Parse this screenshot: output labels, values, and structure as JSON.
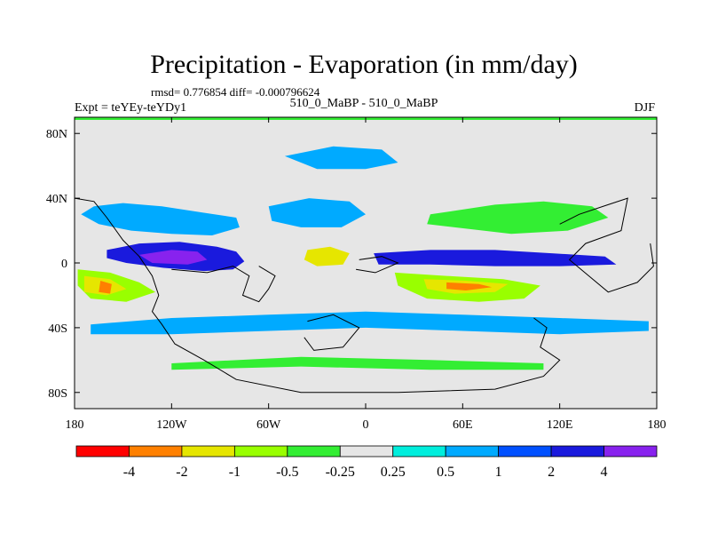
{
  "chart_data": {
    "type": "heatmap",
    "title": "Precipitation - Evaporation (in mm/day)",
    "stats": "rmsd= 0.776854 diff= -0.000796624",
    "left_label": "Expt = teYEy-teYDy1",
    "center_label": "510_0_MaBP - 510_0_MaBP",
    "right_label": "DJF",
    "x_ticks": [
      "180",
      "120W",
      "60W",
      "0",
      "60E",
      "120E",
      "180"
    ],
    "x_tick_values": [
      -180,
      -120,
      -60,
      0,
      60,
      120,
      180
    ],
    "y_ticks": [
      "80N",
      "40N",
      "0",
      "40S",
      "80S"
    ],
    "y_tick_values": [
      80,
      40,
      0,
      -40,
      -80
    ],
    "xlim": [
      -180,
      180
    ],
    "ylim": [
      -90,
      90
    ],
    "colorbar_labels": [
      "-4",
      "-2",
      "-1",
      "-0.5",
      "-0.25",
      "0.25",
      "0.5",
      "1",
      "2",
      "4"
    ],
    "colorbar_levels": [
      -4,
      -2,
      -1,
      -0.5,
      -0.25,
      0.25,
      0.5,
      1,
      2,
      4
    ],
    "colorbar_colors": [
      "#ff0000",
      "#ff8000",
      "#e6e600",
      "#99ff00",
      "#33ee33",
      "#e6e6e6",
      "#00eedd",
      "#00aaff",
      "#0050ff",
      "#1a1add",
      "#8822ee"
    ],
    "regions": [
      {
        "name": "n-pacific-ridge",
        "level": 0.5,
        "points": [
          [
            -168,
            35
          ],
          [
            -150,
            37
          ],
          [
            -126,
            35
          ],
          [
            -100,
            31
          ],
          [
            -80,
            28
          ],
          [
            -78,
            22
          ],
          [
            -95,
            17
          ],
          [
            -120,
            18
          ],
          [
            -145,
            20
          ],
          [
            -165,
            24
          ],
          [
            -176,
            30
          ]
        ]
      },
      {
        "name": "tropical-pacific-blue",
        "level": 2,
        "points": [
          [
            -160,
            8
          ],
          [
            -140,
            12
          ],
          [
            -115,
            13
          ],
          [
            -92,
            10
          ],
          [
            -80,
            7
          ],
          [
            -75,
            1
          ],
          [
            -82,
            -4
          ],
          [
            -100,
            -5
          ],
          [
            -125,
            -3
          ],
          [
            -148,
            0
          ],
          [
            -160,
            3
          ]
        ]
      },
      {
        "name": "tropical-pacific-core",
        "level": 4,
        "points": [
          [
            -140,
            5
          ],
          [
            -120,
            8
          ],
          [
            -104,
            7
          ],
          [
            -98,
            2
          ],
          [
            -110,
            -1
          ],
          [
            -132,
            0
          ]
        ]
      },
      {
        "name": "s-pacific-yellow",
        "level": -1,
        "points": [
          [
            -178,
            -4
          ],
          [
            -158,
            -6
          ],
          [
            -140,
            -12
          ],
          [
            -130,
            -18
          ],
          [
            -148,
            -24
          ],
          [
            -170,
            -22
          ],
          [
            -178,
            -14
          ]
        ]
      },
      {
        "name": "s-pacific-orange",
        "level": -2,
        "points": [
          [
            -174,
            -8
          ],
          [
            -158,
            -10
          ],
          [
            -148,
            -16
          ],
          [
            -160,
            -20
          ],
          [
            -174,
            -18
          ]
        ]
      },
      {
        "name": "s-pacific-red",
        "level": -4,
        "points": [
          [
            -164,
            -11
          ],
          [
            -157,
            -13
          ],
          [
            -158,
            -19
          ],
          [
            -165,
            -18
          ]
        ]
      },
      {
        "name": "atlantic-dry",
        "level": -2,
        "points": [
          [
            -36,
            8
          ],
          [
            -22,
            10
          ],
          [
            -10,
            6
          ],
          [
            -14,
            -1
          ],
          [
            -30,
            -2
          ],
          [
            -38,
            2
          ]
        ]
      },
      {
        "name": "equatorial-band-blue",
        "level": 2,
        "points": [
          [
            5,
            6
          ],
          [
            40,
            8
          ],
          [
            80,
            8
          ],
          [
            115,
            6
          ],
          [
            148,
            4
          ],
          [
            155,
            -1
          ],
          [
            120,
            -2
          ],
          [
            80,
            -2
          ],
          [
            40,
            -1
          ],
          [
            8,
            -1
          ]
        ]
      },
      {
        "name": "indian-ocean-dry",
        "level": -1,
        "points": [
          [
            18,
            -6
          ],
          [
            50,
            -8
          ],
          [
            85,
            -10
          ],
          [
            108,
            -14
          ],
          [
            98,
            -22
          ],
          [
            70,
            -24
          ],
          [
            38,
            -22
          ],
          [
            20,
            -14
          ]
        ]
      },
      {
        "name": "indian-ocean-core",
        "level": -2,
        "points": [
          [
            36,
            -10
          ],
          [
            62,
            -11
          ],
          [
            88,
            -13
          ],
          [
            80,
            -18
          ],
          [
            55,
            -19
          ],
          [
            38,
            -16
          ]
        ]
      },
      {
        "name": "indian-ocean-red",
        "level": -4,
        "points": [
          [
            50,
            -12
          ],
          [
            70,
            -13
          ],
          [
            78,
            -15
          ],
          [
            62,
            -17
          ],
          [
            50,
            -16
          ]
        ]
      },
      {
        "name": "asia-green",
        "level": -0.5,
        "points": [
          [
            40,
            30
          ],
          [
            80,
            36
          ],
          [
            110,
            38
          ],
          [
            140,
            35
          ],
          [
            150,
            28
          ],
          [
            125,
            20
          ],
          [
            90,
            18
          ],
          [
            55,
            22
          ],
          [
            38,
            24
          ]
        ]
      },
      {
        "name": "n-atlantic-teal",
        "level": 0.5,
        "points": [
          [
            -60,
            35
          ],
          [
            -35,
            40
          ],
          [
            -10,
            38
          ],
          [
            0,
            30
          ],
          [
            -15,
            22
          ],
          [
            -40,
            22
          ],
          [
            -58,
            26
          ]
        ]
      },
      {
        "name": "southern-ocean-band",
        "level": 0.5,
        "points": [
          [
            -170,
            -38
          ],
          [
            -120,
            -34
          ],
          [
            -60,
            -32
          ],
          [
            0,
            -30
          ],
          [
            60,
            -32
          ],
          [
            120,
            -34
          ],
          [
            175,
            -36
          ],
          [
            175,
            -42
          ],
          [
            120,
            -44
          ],
          [
            60,
            -42
          ],
          [
            0,
            -40
          ],
          [
            -60,
            -42
          ],
          [
            -120,
            -44
          ],
          [
            -170,
            -44
          ]
        ]
      },
      {
        "name": "arctic-teal",
        "level": 0.5,
        "points": [
          [
            -50,
            66
          ],
          [
            -20,
            72
          ],
          [
            10,
            70
          ],
          [
            20,
            62
          ],
          [
            0,
            58
          ],
          [
            -30,
            58
          ]
        ]
      },
      {
        "name": "antarctic-fringe",
        "level": -0.5,
        "points": [
          [
            -120,
            -62
          ],
          [
            -40,
            -58
          ],
          [
            40,
            -60
          ],
          [
            110,
            -62
          ],
          [
            110,
            -66
          ],
          [
            40,
            -66
          ],
          [
            -40,
            -64
          ],
          [
            -120,
            -66
          ]
        ]
      }
    ]
  }
}
